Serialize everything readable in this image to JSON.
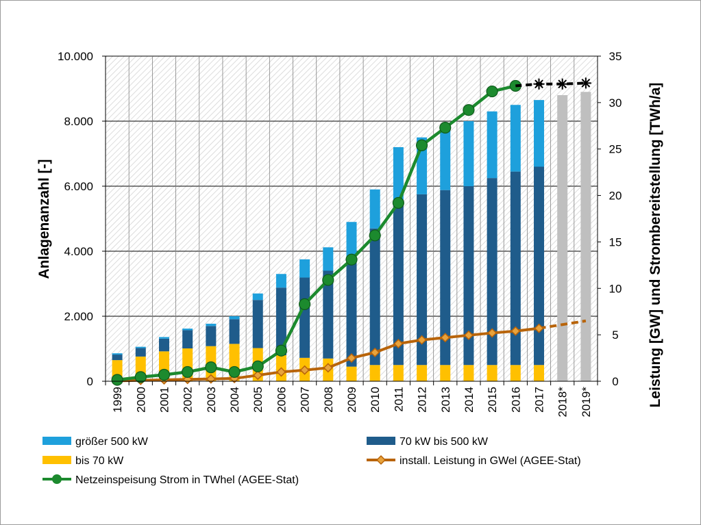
{
  "chart_data": {
    "type": "bar",
    "categories": [
      "1999",
      "2000",
      "2001",
      "2002",
      "2003",
      "2004",
      "2005",
      "2006",
      "2007",
      "2008",
      "2009",
      "2010",
      "2011",
      "2012",
      "2013",
      "2014",
      "2015",
      "2016",
      "2017",
      "2018*",
      "2019*"
    ],
    "bars_stacked": [
      {
        "name": "bis 70 kW",
        "color": "#FFC000",
        "values": [
          650,
          760,
          920,
          1010,
          1080,
          1150,
          1020,
          800,
          720,
          700,
          450,
          500,
          500,
          500,
          500,
          500,
          500,
          500,
          500,
          null,
          null
        ]
      },
      {
        "name": "70 kW bis 500 kW",
        "color": "#1F5C8B",
        "values": [
          170,
          260,
          390,
          560,
          620,
          760,
          1480,
          2080,
          2470,
          2700,
          3200,
          4200,
          4900,
          5250,
          5380,
          5500,
          5750,
          5950,
          6100,
          null,
          null
        ]
      },
      {
        "name": "größer 500 kW",
        "color": "#1EA0DC",
        "values": [
          40,
          40,
          50,
          50,
          70,
          90,
          200,
          420,
          560,
          720,
          1250,
          1200,
          1800,
          1750,
          1920,
          2000,
          2050,
          2050,
          2050,
          null,
          null
        ]
      }
    ],
    "bars_total_forecast": {
      "name": "",
      "color": "#BFBFBF",
      "values": [
        null,
        null,
        null,
        null,
        null,
        null,
        null,
        null,
        null,
        null,
        null,
        null,
        null,
        null,
        null,
        null,
        null,
        null,
        null,
        8800,
        8900
      ]
    },
    "lines": [
      {
        "name": "install. Leistung in GWel (AGEE-Stat)",
        "axis": "right",
        "color": "#B8640A",
        "marker": "diamond",
        "values": [
          0.05,
          0.1,
          0.15,
          0.2,
          0.25,
          0.3,
          0.65,
          1.0,
          1.2,
          1.45,
          2.5,
          3.1,
          4.05,
          4.45,
          4.7,
          4.95,
          5.2,
          5.4,
          5.7,
          6.1,
          6.5
        ],
        "dashed_from_index": 18
      },
      {
        "name": "Netzeinspeisung Strom in TWhel (AGEE-Stat)",
        "axis": "right",
        "color": "#1C8A2E",
        "marker": "circle",
        "values": [
          0.15,
          0.45,
          0.7,
          1.0,
          1.5,
          1.0,
          1.6,
          3.3,
          8.3,
          10.9,
          13.1,
          15.7,
          19.2,
          25.4,
          27.3,
          29.2,
          31.2,
          31.8,
          null,
          null,
          null
        ]
      },
      {
        "name": "",
        "axis": "right",
        "color": "#000000",
        "marker": "star",
        "dashed": true,
        "values": [
          null,
          null,
          null,
          null,
          null,
          null,
          null,
          null,
          null,
          null,
          null,
          null,
          null,
          null,
          null,
          null,
          null,
          31.8,
          32.0,
          32.0,
          32.1
        ]
      }
    ],
    "ylabel_left": "Anlagenanzahl [-]",
    "ylabel_right": "Leistung [GW] und Strombereitstellung [TWh/a]",
    "ylim_left": [
      0,
      10000
    ],
    "ylim_right": [
      0,
      35
    ],
    "yticks_left": [
      "0",
      "2.000",
      "4.000",
      "6.000",
      "8.000",
      "10.000"
    ],
    "yticks_right": [
      "0",
      "5",
      "10",
      "15",
      "20",
      "25",
      "30",
      "35"
    ],
    "grid": true,
    "legend_position": "bottom"
  },
  "legend": {
    "items": [
      {
        "label": "größer 500 kW",
        "kind": "box",
        "color": "#1EA0DC"
      },
      {
        "label": "70 kW bis 500 kW",
        "kind": "box",
        "color": "#1F5C8B"
      },
      {
        "label": "bis 70 kW",
        "kind": "box",
        "color": "#FFC000"
      },
      {
        "label": "install. Leistung in GWel (AGEE-Stat)",
        "kind": "line-diamond",
        "color": "#B8640A"
      },
      {
        "label": "Netzeinspeisung Strom in TWhel (AGEE-Stat)",
        "kind": "line-circle",
        "color": "#1C8A2E"
      }
    ]
  }
}
